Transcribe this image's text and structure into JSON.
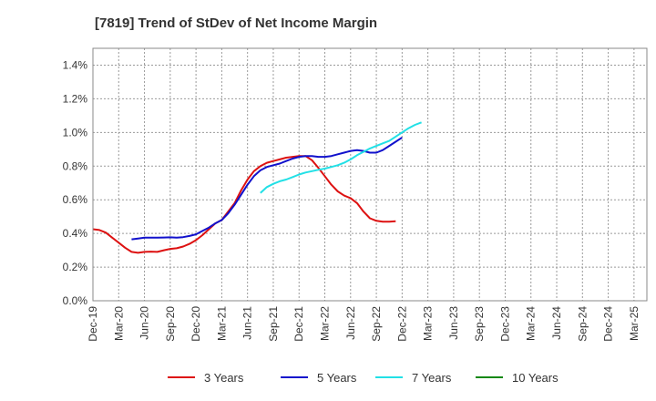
{
  "chart_data": {
    "type": "line",
    "title": "[7819]  Trend of StDev of Net Income Margin",
    "xlabel": "",
    "ylabel": "",
    "ylim": [
      0,
      1.5
    ],
    "y_ticks": [
      0.0,
      0.2,
      0.4,
      0.6,
      0.8,
      1.0,
      1.2,
      1.4
    ],
    "y_tick_labels": [
      "0.0%",
      "0.2%",
      "0.4%",
      "0.6%",
      "0.8%",
      "1.0%",
      "1.2%",
      "1.4%"
    ],
    "x_ticks": [
      "Dec-19",
      "Mar-20",
      "Jun-20",
      "Sep-20",
      "Dec-20",
      "Mar-21",
      "Jun-21",
      "Sep-21",
      "Dec-21",
      "Mar-22",
      "Jun-22",
      "Sep-22",
      "Dec-22",
      "Mar-23",
      "Jun-23",
      "Sep-23",
      "Dec-23",
      "Mar-24",
      "Jun-24",
      "Sep-24",
      "Dec-24",
      "Mar-25"
    ],
    "grid": true,
    "legend_position": "bottom",
    "series": [
      {
        "name": "3 Years",
        "color": "#dd1111",
        "points": [
          [
            0,
            0.425
          ],
          [
            0.5,
            0.42
          ],
          [
            1,
            0.405
          ],
          [
            1.5,
            0.375
          ],
          [
            2,
            0.345
          ],
          [
            2.5,
            0.315
          ],
          [
            3,
            0.29
          ],
          [
            3.5,
            0.285
          ],
          [
            4,
            0.29
          ],
          [
            4.5,
            0.292
          ],
          [
            5,
            0.29
          ],
          [
            5.5,
            0.3
          ],
          [
            6,
            0.308
          ],
          [
            6.5,
            0.312
          ],
          [
            7,
            0.322
          ],
          [
            7.5,
            0.338
          ],
          [
            8,
            0.36
          ],
          [
            8.5,
            0.39
          ],
          [
            9,
            0.425
          ],
          [
            9.5,
            0.46
          ],
          [
            10,
            0.48
          ],
          [
            10.5,
            0.53
          ],
          [
            11,
            0.58
          ],
          [
            11.5,
            0.655
          ],
          [
            12,
            0.72
          ],
          [
            12.5,
            0.77
          ],
          [
            13,
            0.8
          ],
          [
            13.5,
            0.82
          ],
          [
            14,
            0.83
          ],
          [
            14.5,
            0.84
          ],
          [
            15,
            0.85
          ],
          [
            15.5,
            0.855
          ],
          [
            16,
            0.86
          ],
          [
            16.5,
            0.86
          ],
          [
            17,
            0.835
          ],
          [
            17.5,
            0.79
          ],
          [
            18,
            0.74
          ],
          [
            18.5,
            0.69
          ],
          [
            19,
            0.65
          ],
          [
            19.5,
            0.625
          ],
          [
            20,
            0.61
          ],
          [
            20.5,
            0.58
          ],
          [
            21,
            0.53
          ],
          [
            21.5,
            0.49
          ],
          [
            22,
            0.475
          ],
          [
            22.5,
            0.47
          ],
          [
            23,
            0.47
          ],
          [
            23.5,
            0.472
          ]
        ]
      },
      {
        "name": "5 Years",
        "color": "#1111cc",
        "points": [
          [
            3,
            0.365
          ],
          [
            3.5,
            0.37
          ],
          [
            4,
            0.375
          ],
          [
            4.5,
            0.375
          ],
          [
            5,
            0.375
          ],
          [
            5.5,
            0.376
          ],
          [
            6,
            0.377
          ],
          [
            6.5,
            0.375
          ],
          [
            7,
            0.378
          ],
          [
            7.5,
            0.385
          ],
          [
            8,
            0.395
          ],
          [
            8.5,
            0.415
          ],
          [
            9,
            0.435
          ],
          [
            9.5,
            0.46
          ],
          [
            10,
            0.48
          ],
          [
            10.5,
            0.52
          ],
          [
            11,
            0.57
          ],
          [
            11.5,
            0.63
          ],
          [
            12,
            0.69
          ],
          [
            12.5,
            0.74
          ],
          [
            13,
            0.775
          ],
          [
            13.5,
            0.795
          ],
          [
            14,
            0.805
          ],
          [
            14.5,
            0.815
          ],
          [
            15,
            0.83
          ],
          [
            15.5,
            0.845
          ],
          [
            16,
            0.855
          ],
          [
            16.5,
            0.86
          ],
          [
            17,
            0.86
          ],
          [
            17.5,
            0.855
          ],
          [
            18,
            0.855
          ],
          [
            18.5,
            0.86
          ],
          [
            19,
            0.87
          ],
          [
            19.5,
            0.88
          ],
          [
            20,
            0.89
          ],
          [
            20.5,
            0.895
          ],
          [
            21,
            0.89
          ],
          [
            21.5,
            0.88
          ],
          [
            22,
            0.88
          ],
          [
            22.5,
            0.895
          ],
          [
            23,
            0.92
          ],
          [
            23.5,
            0.945
          ],
          [
            24,
            0.97
          ]
        ]
      },
      {
        "name": "7 Years",
        "color": "#22e0e6",
        "points": [
          [
            13,
            0.64
          ],
          [
            13.5,
            0.675
          ],
          [
            14,
            0.695
          ],
          [
            14.5,
            0.71
          ],
          [
            15,
            0.72
          ],
          [
            15.5,
            0.735
          ],
          [
            16,
            0.75
          ],
          [
            16.5,
            0.762
          ],
          [
            17,
            0.77
          ],
          [
            17.5,
            0.778
          ],
          [
            18,
            0.785
          ],
          [
            18.5,
            0.795
          ],
          [
            19,
            0.805
          ],
          [
            19.5,
            0.82
          ],
          [
            20,
            0.84
          ],
          [
            20.5,
            0.865
          ],
          [
            21,
            0.885
          ],
          [
            21.5,
            0.905
          ],
          [
            22,
            0.92
          ],
          [
            22.5,
            0.935
          ],
          [
            23,
            0.95
          ],
          [
            23.5,
            0.975
          ],
          [
            24,
            1.0
          ],
          [
            24.5,
            1.025
          ],
          [
            25,
            1.045
          ],
          [
            25.5,
            1.06
          ]
        ]
      },
      {
        "name": "10 Years",
        "color": "#118811",
        "points": []
      }
    ]
  }
}
